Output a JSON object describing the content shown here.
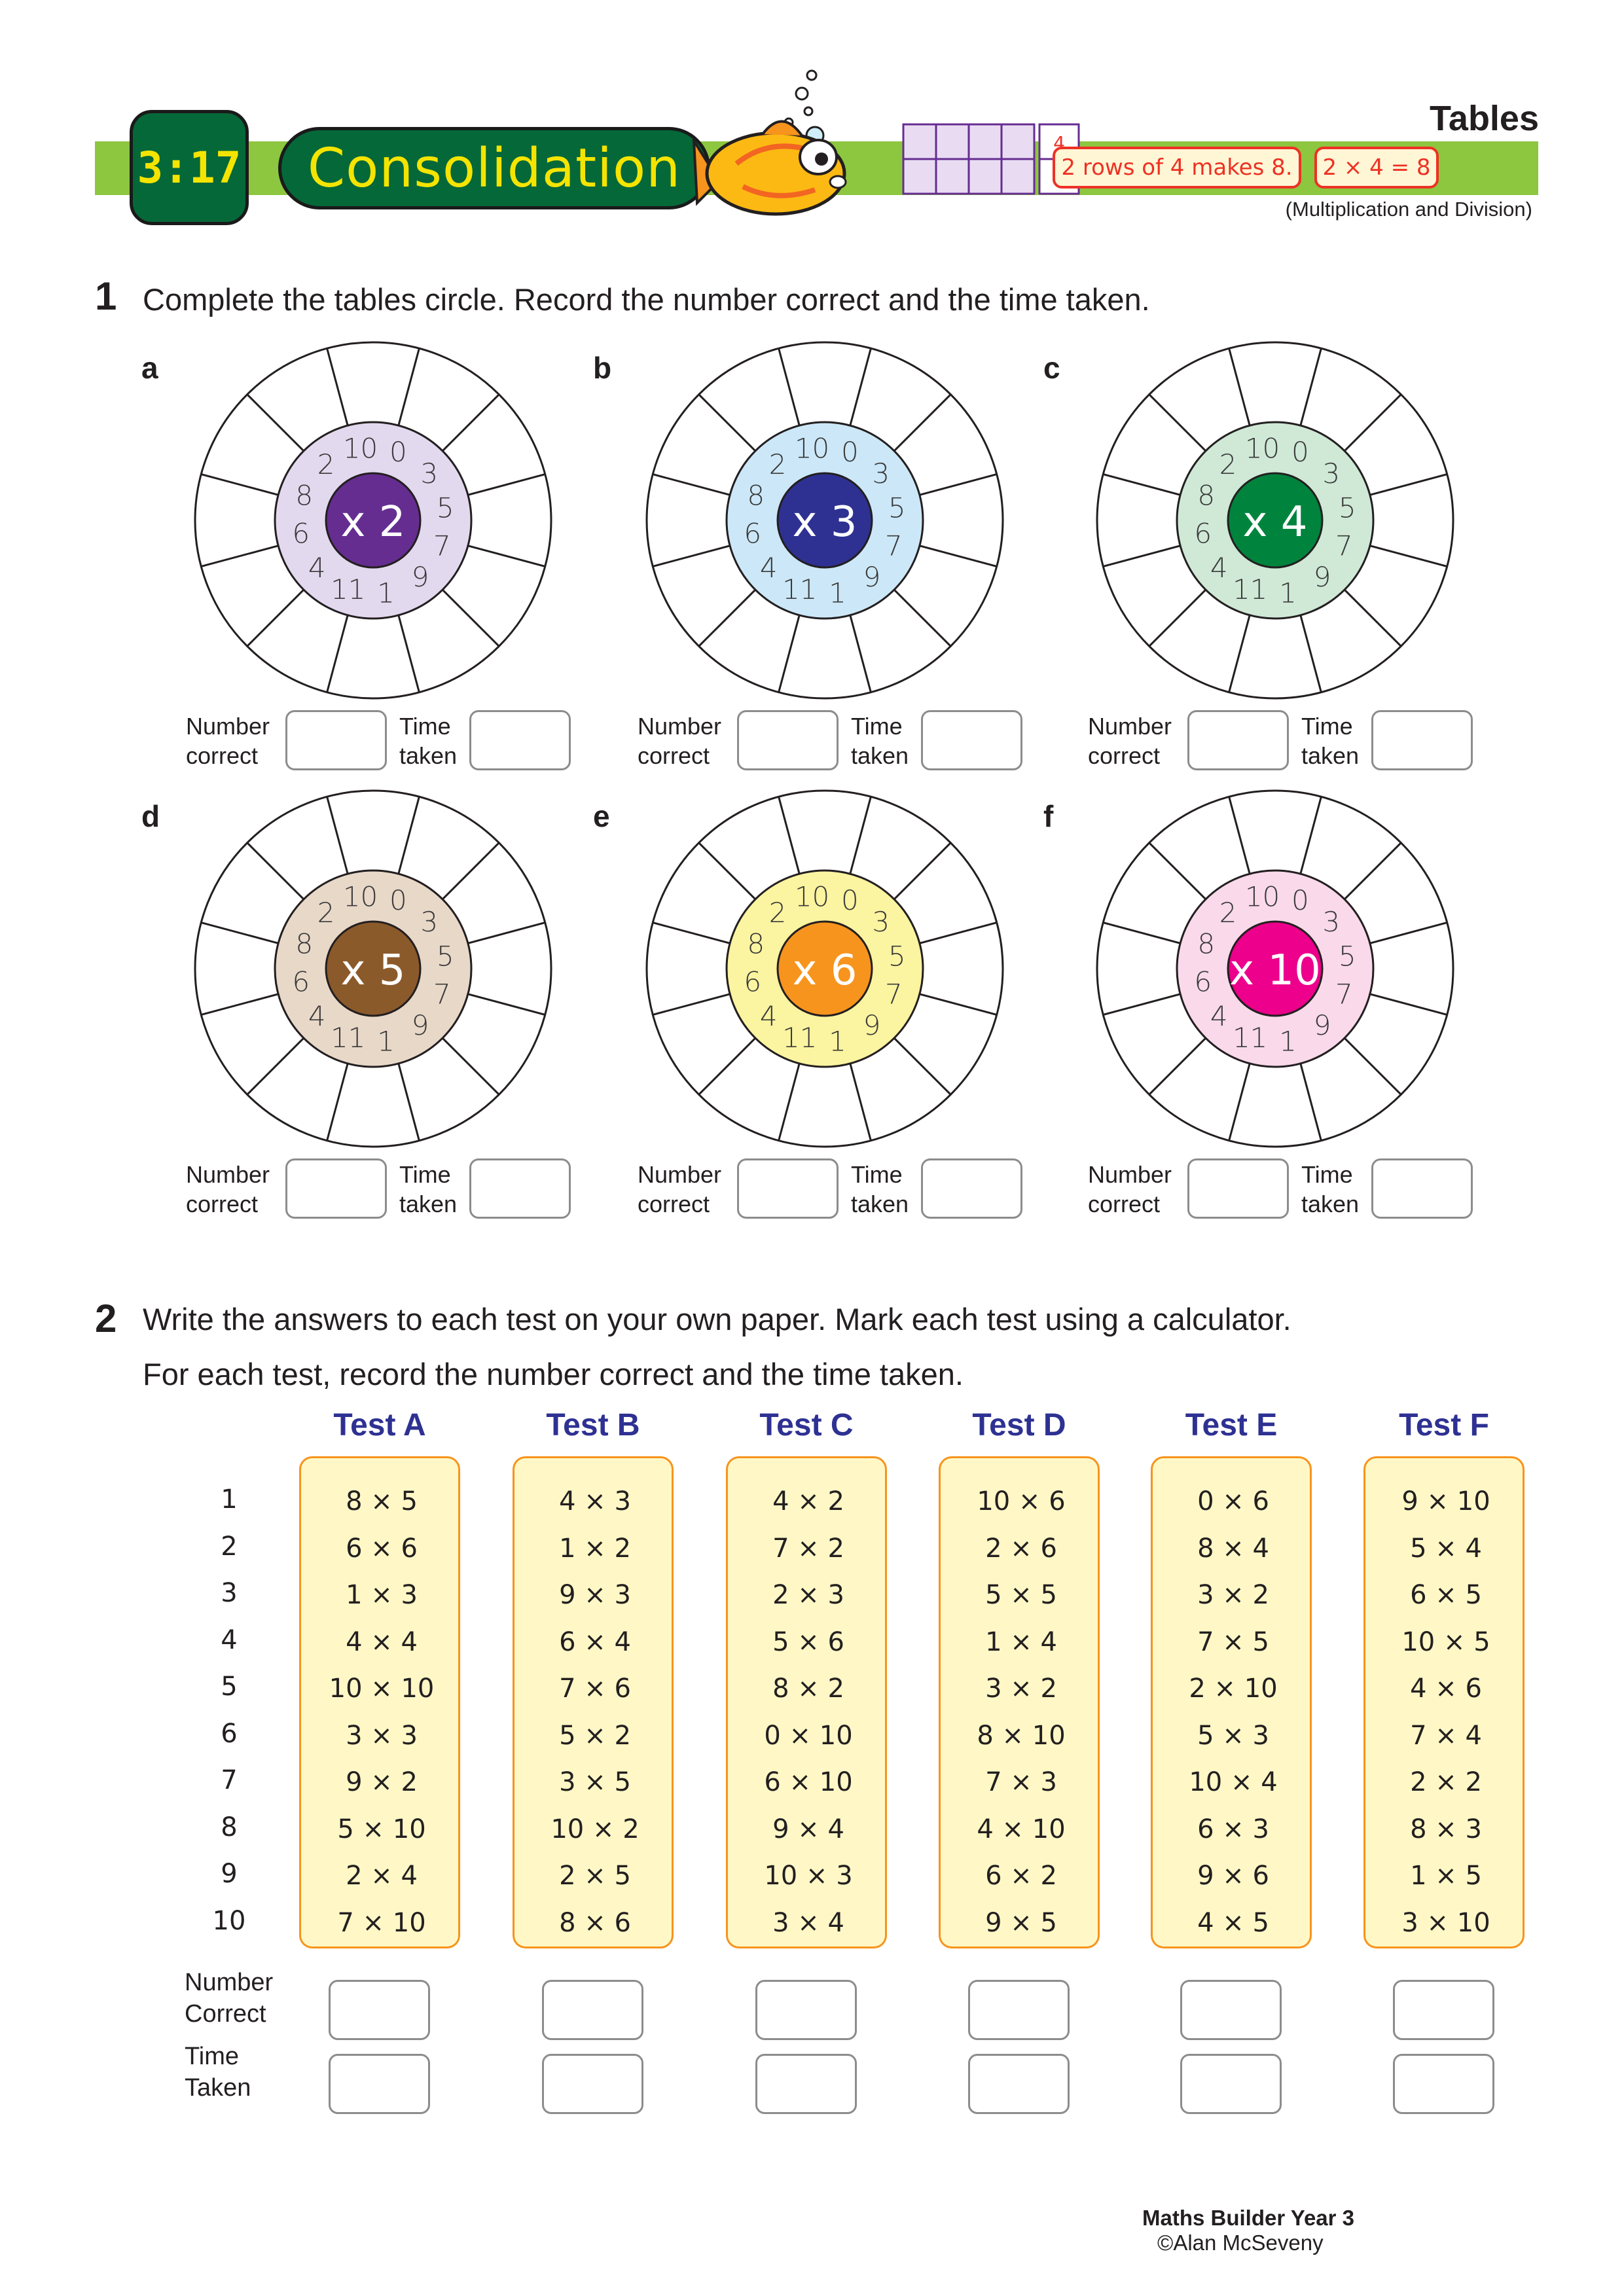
{
  "header": {
    "lesson_number": "3:17",
    "title": "Consolidation",
    "strand_title": "Tables",
    "array_labels": [
      "4",
      "8"
    ],
    "example_1": "2 rows of 4 makes 8.",
    "example_2": "2 × 4 = 8",
    "subtitle": "(Multiplication and Division)"
  },
  "question1": {
    "number": "1",
    "text": "Complete the tables circle. Record the number correct and the time taken.",
    "ring_numbers": [
      "0",
      "3",
      "5",
      "7",
      "9",
      "1",
      "11",
      "4",
      "6",
      "8",
      "2",
      "10"
    ],
    "record_labels": {
      "number_line1": "Number",
      "number_line2": "correct",
      "time_line1": "Time",
      "time_line2": "taken"
    },
    "wheels": [
      {
        "label": "a",
        "center": "x 2",
        "ring_color": "#e3d9ef",
        "center_color": "#662d91"
      },
      {
        "label": "b",
        "center": "x 3",
        "ring_color": "#cce8f8",
        "center_color": "#2e3192"
      },
      {
        "label": "c",
        "center": "x 4",
        "ring_color": "#cfe9d6",
        "center_color": "#00843d"
      },
      {
        "label": "d",
        "center": "x 5",
        "ring_color": "#e8d8c8",
        "center_color": "#8b5a2b"
      },
      {
        "label": "e",
        "center": "x 6",
        "ring_color": "#fbf4a0",
        "center_color": "#f7941d"
      },
      {
        "label": "f",
        "center": "x 10",
        "ring_color": "#f9d9ea",
        "center_color": "#ec008c"
      }
    ]
  },
  "question2": {
    "number": "2",
    "line1": "Write the answers to each test on your own paper. Mark each test using a calculator.",
    "line2": "For each test, record the number correct and the time taken.",
    "row_numbers": [
      "1",
      "2",
      "3",
      "4",
      "5",
      "6",
      "7",
      "8",
      "9",
      "10"
    ],
    "tests": [
      {
        "title": "Test A",
        "items": [
          "8 × 5",
          "6 × 6",
          "1 × 3",
          "4 × 4",
          "10 × 10",
          "3 × 3",
          "9 × 2",
          "5 × 10",
          "2 × 4",
          "7 × 10"
        ]
      },
      {
        "title": "Test B",
        "items": [
          "4 × 3",
          "1 × 2",
          "9 × 3",
          "6 × 4",
          "7 × 6",
          "5 × 2",
          "3 × 5",
          "10 × 2",
          "2 × 5",
          "8 × 6"
        ]
      },
      {
        "title": "Test C",
        "items": [
          "4 × 2",
          "7 × 2",
          "2 × 3",
          "5 × 6",
          "8 × 2",
          "0 × 10",
          "6 × 10",
          "9 × 4",
          "10 × 3",
          "3 × 4"
        ]
      },
      {
        "title": "Test D",
        "items": [
          "10 × 6",
          "2 × 6",
          "5 × 5",
          "1 × 4",
          "3 × 2",
          "8 × 10",
          "7 × 3",
          "4 × 10",
          "6 × 2",
          "9 × 5"
        ]
      },
      {
        "title": "Test E",
        "items": [
          "0 × 6",
          "8 × 4",
          "3 × 2",
          "7 × 5",
          "2 × 10",
          "5 × 3",
          "10 × 4",
          "6 × 3",
          "9 × 6",
          "4 × 5"
        ]
      },
      {
        "title": "Test F",
        "items": [
          "9 × 10",
          "5 × 4",
          "6 × 5",
          "10 × 5",
          "4 × 6",
          "7 × 4",
          "2 × 2",
          "8 × 3",
          "1 × 5",
          "3 × 10"
        ]
      }
    ],
    "record_labels": {
      "number_line1": "Number",
      "number_line2": "Correct",
      "time_line1": "Time",
      "time_line2": "Taken"
    }
  },
  "footer": {
    "book": "Maths Builder Year 3",
    "copyright": "©Alan McSeveny"
  }
}
